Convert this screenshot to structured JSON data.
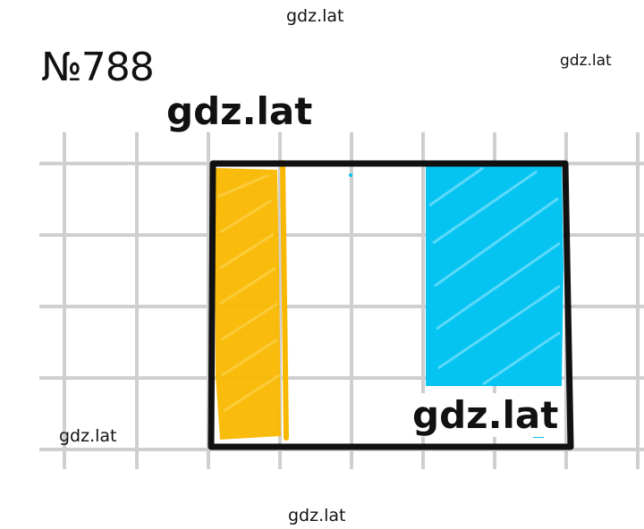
{
  "watermarks": {
    "top": "gdz.lat",
    "right": "gdz.lat",
    "left": "gdz.lat",
    "bottom": "gdz.lat",
    "bold_top": "gdz.lat",
    "bold_bottom": "gdz.lat"
  },
  "task": {
    "number": "№788"
  },
  "colors": {
    "grid": "#cfcfcf",
    "outline": "#111111",
    "yellow": "#f9b800",
    "blue": "#06c4f2"
  }
}
